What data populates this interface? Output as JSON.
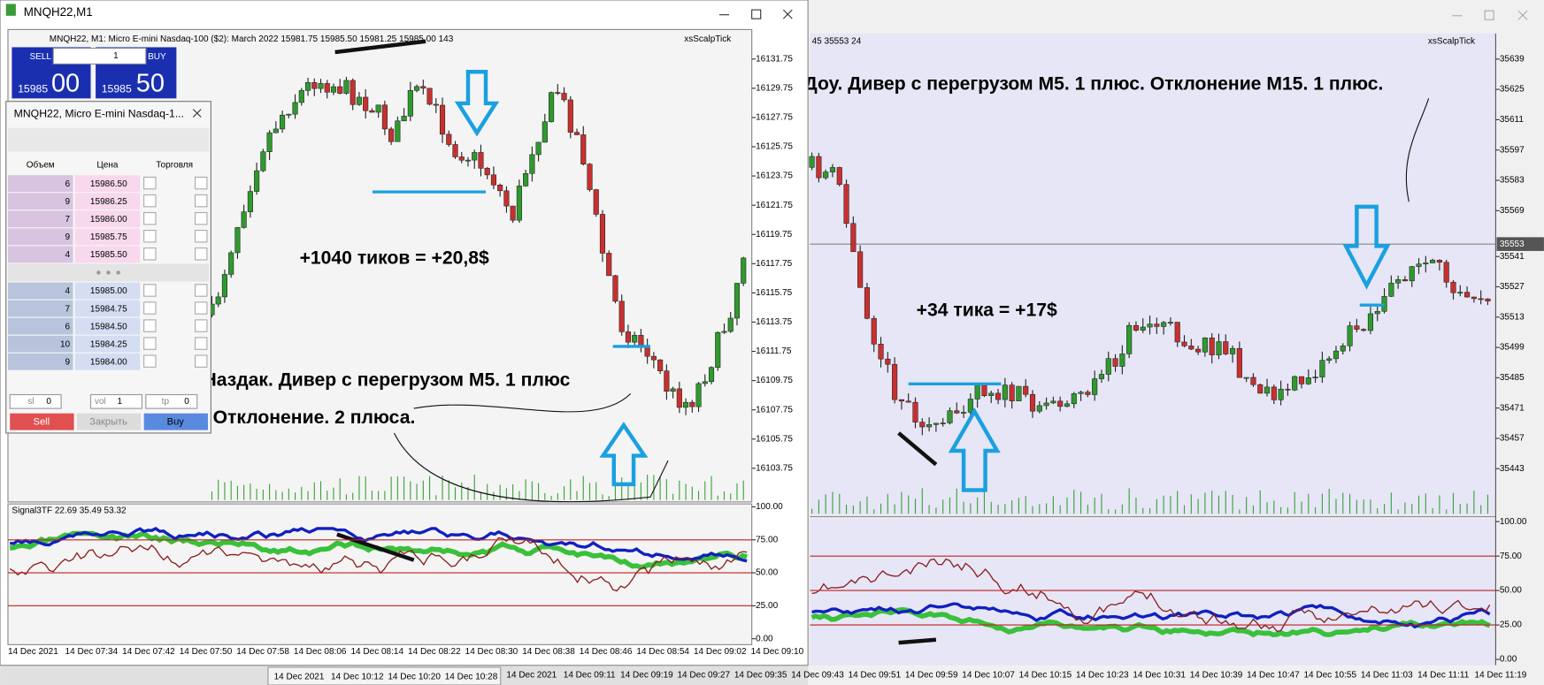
{
  "left_window": {
    "title": "MNQH22,M1",
    "header": "MNQH22, M1:  Micro E-mini Nasdaq-100 ($2): March 2022  15981.75 15985.50 15981.25 15985.00  143",
    "indicator_name": "xsScalpTick",
    "trade_panel": {
      "sell": "SELL",
      "buy": "BUY",
      "lots": "1",
      "bid_big": "15985",
      "bid_small": "00",
      "ask_big": "15985",
      "ask_small": "50"
    },
    "price_axis": [
      "16131.75",
      "16129.75",
      "16127.75",
      "16125.75",
      "16123.75",
      "16121.75",
      "16119.75",
      "16117.75",
      "16115.75",
      "16113.75",
      "16111.75",
      "16109.75",
      "16107.75",
      "16105.75",
      "16103.75"
    ],
    "oscillator_label": "Signal3TF 22.69 35.49 53.32",
    "oscillator_axis": [
      "100.00",
      "75.00",
      "50.00",
      "25.00",
      "0.00"
    ],
    "time_axis": [
      "14 Dec 2021",
      "14 Dec 07:34",
      "14 Dec 07:42",
      "14 Dec 07:50",
      "14 Dec 07:58",
      "14 Dec 08:06",
      "14 Dec 08:14",
      "14 Dec 08:22",
      "14 Dec 08:30",
      "14 Dec 08:38",
      "14 Dec 08:46",
      "14 Dec 08:54",
      "14 Dec 09:02",
      "14 Dec 09:10"
    ],
    "annotations": [
      "+1040 тиков = +20,8$",
      "Наздак. Дивер с перегрузом М5. 1 плюс",
      "Отклонение. 2 плюса."
    ]
  },
  "dom_window": {
    "title": "MNQH22, Micro E-mini Nasdaq-1...",
    "columns": [
      "Объем",
      "Цена",
      "Торговля"
    ],
    "asks": [
      [
        "6",
        "15986.50"
      ],
      [
        "9",
        "15986.25"
      ],
      [
        "7",
        "15986.00"
      ],
      [
        "9",
        "15985.75"
      ],
      [
        "4",
        "15985.50"
      ]
    ],
    "bids": [
      [
        "4",
        "15985.00"
      ],
      [
        "7",
        "15984.75"
      ],
      [
        "6",
        "15984.50"
      ],
      [
        "10",
        "15984.25"
      ],
      [
        "9",
        "15984.00"
      ]
    ],
    "sl_label": "sl",
    "sl": "0",
    "vol_label": "vol",
    "vol": "1",
    "tp_label": "tp",
    "tp": "0",
    "buttons": [
      "Sell",
      "Закрыть",
      "Buy"
    ]
  },
  "right_window": {
    "header": "45 35553 24",
    "indicator_name": "xsScalpTick",
    "price_axis": [
      "35639",
      "35625",
      "35611",
      "35597",
      "35583",
      "35569",
      "35541",
      "35527",
      "35513",
      "35499",
      "35485",
      "35471",
      "35457",
      "35443"
    ],
    "current_price": "35553",
    "oscillator_axis": [
      "100.00",
      "75.00",
      "50.00",
      "25.00",
      "0.00"
    ],
    "time_axis": [
      "14 Dec 2021",
      "14 Dec 09:11",
      "14 Dec 09:19",
      "14 Dec 09:27",
      "14 Dec 09:35",
      "14 Dec 09:43",
      "14 Dec 09:51",
      "14 Dec 09:59",
      "14 Dec 10:07",
      "14 Dec 10:15",
      "14 Dec 10:23",
      "14 Dec 10:31",
      "14 Dec 10:39",
      "14 Dec 10:47",
      "14 Dec 10:55",
      "14 Dec 11:03",
      "14 Dec 11:11",
      "14 Dec 11:19"
    ],
    "annotations": [
      "Доу. Дивер с перегрузом М5. 1 плюс. Отклонение М15. 1 плюс.",
      "+34 тика = +17$"
    ]
  },
  "background_strip": {
    "time_axis": [
      "14 Dec 2021",
      "14 Dec 10:12",
      "14 Dec 10:20",
      "14 Dec 10:28"
    ]
  }
}
